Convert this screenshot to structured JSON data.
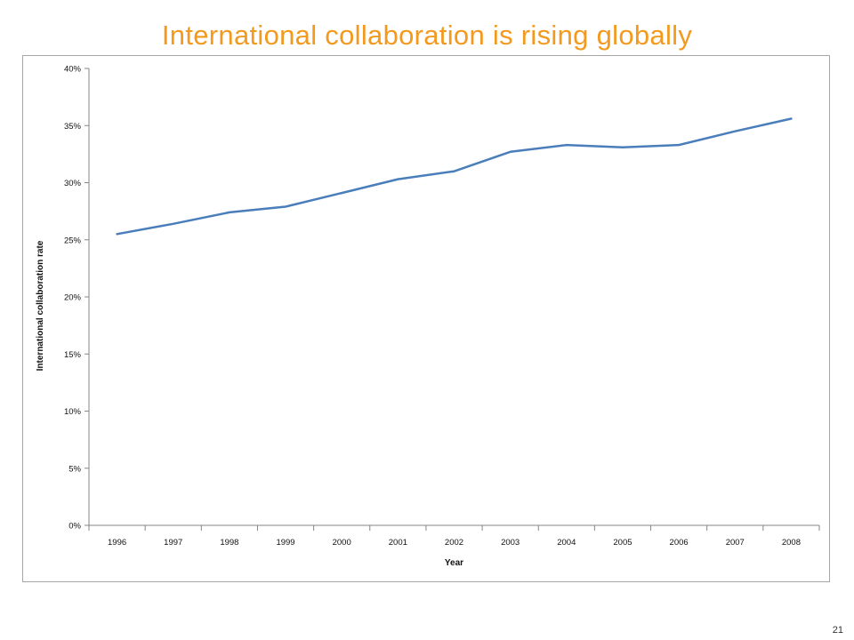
{
  "slide": {
    "title": "International collaboration is rising globally",
    "page_number": "21",
    "title_color": "#f39a1e"
  },
  "chart_data": {
    "type": "line",
    "title": "",
    "xlabel": "Year",
    "ylabel": "International collaboration rate",
    "categories": [
      "1996",
      "1997",
      "1998",
      "1999",
      "2000",
      "2001",
      "2002",
      "2003",
      "2004",
      "2005",
      "2006",
      "2007",
      "2008"
    ],
    "series": [
      {
        "values": [
          0.255,
          0.264,
          0.274,
          0.279,
          0.291,
          0.303,
          0.31,
          0.327,
          0.333,
          0.331,
          0.333,
          0.345,
          0.356
        ],
        "color": "#4a7ebb"
      }
    ],
    "ylim": [
      0,
      0.4
    ],
    "yticks": [
      0,
      0.05,
      0.1,
      0.15,
      0.2,
      0.25,
      0.3,
      0.35,
      0.4
    ],
    "ytick_labels": [
      "0%",
      "5%",
      "10%",
      "15%",
      "20%",
      "25%",
      "30%",
      "35%",
      "40%"
    ],
    "grid": false,
    "legend": "none"
  }
}
